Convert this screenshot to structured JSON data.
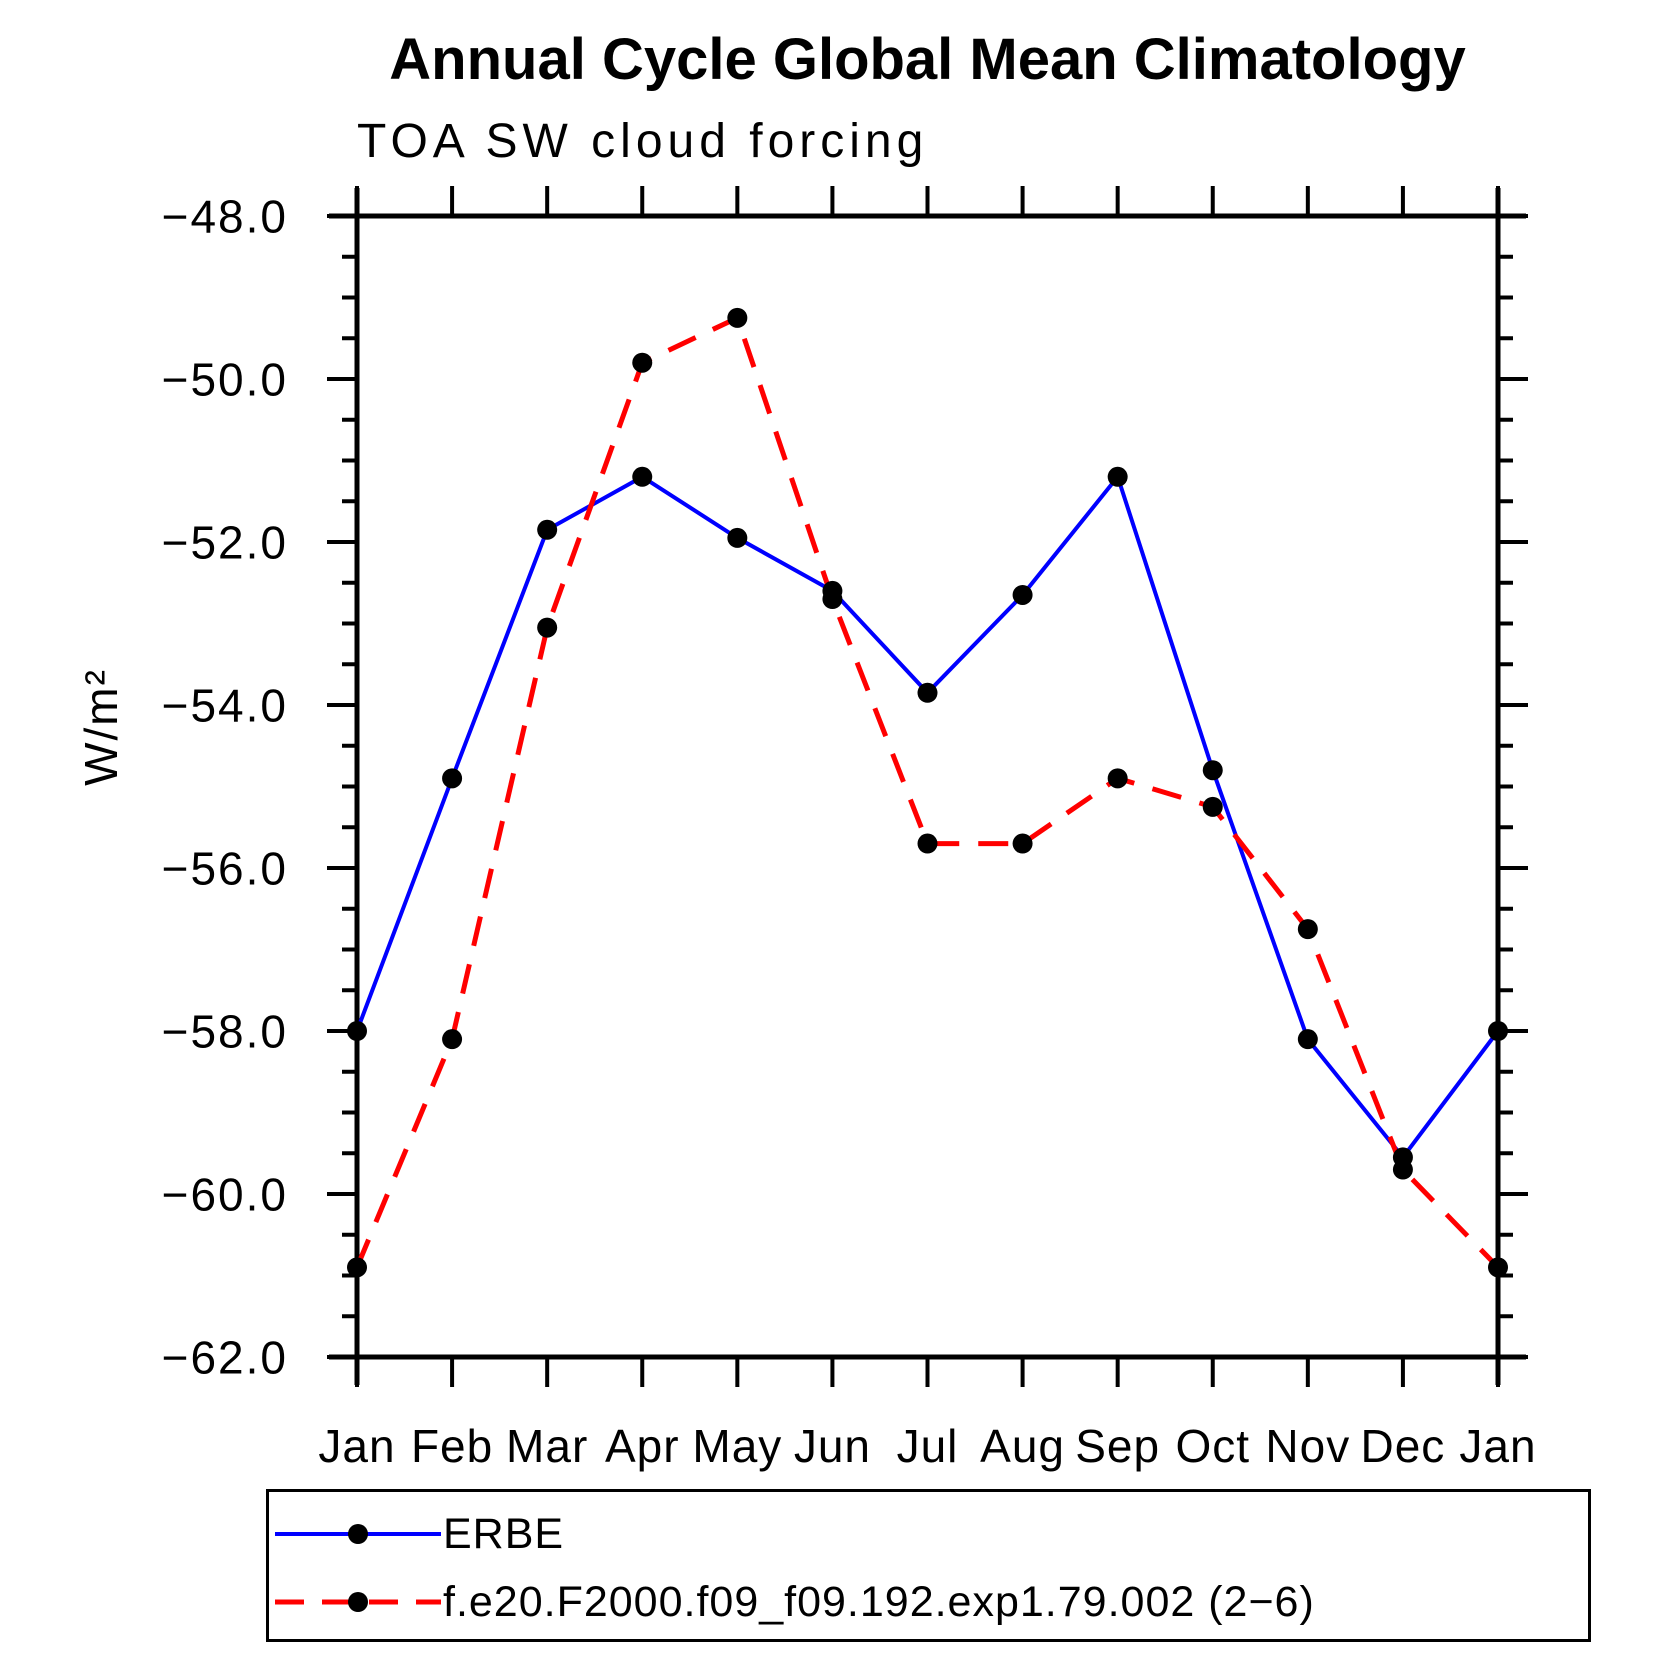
{
  "title": "Annual Cycle Global Mean Climatology",
  "subtitle": "TOA SW cloud forcing",
  "y_axis_label": "W/m²",
  "colors": {
    "erbe_line": "#0000ff",
    "model_line": "#ff0000",
    "marker": "#000000",
    "axis": "#000000",
    "background": "#ffffff"
  },
  "legend": {
    "entries": [
      {
        "label": "ERBE",
        "line_style": "solid",
        "color": "#0000ff"
      },
      {
        "label": "f.e20.F2000.f09_f09.192.exp1.79.002 (2−6)",
        "line_style": "dashed",
        "color": "#ff0000"
      }
    ]
  },
  "chart_data": {
    "type": "line",
    "title": "Annual Cycle Global Mean Climatology",
    "subtitle": "TOA SW cloud forcing",
    "ylabel": "W/m²",
    "categories": [
      "Jan",
      "Feb",
      "Mar",
      "Apr",
      "May",
      "Jun",
      "Jul",
      "Aug",
      "Sep",
      "Oct",
      "Nov",
      "Dec",
      "Jan"
    ],
    "series": [
      {
        "name": "ERBE",
        "color": "#0000ff",
        "style": "solid",
        "marker": "filled-circle",
        "values": [
          -58.0,
          -54.9,
          -51.85,
          -51.2,
          -51.95,
          -52.6,
          -53.85,
          -52.65,
          -51.2,
          -54.8,
          -58.1,
          -59.55,
          -58.0
        ]
      },
      {
        "name": "f.e20.F2000.f09_f09.192.exp1.79.002 (2−6)",
        "color": "#ff0000",
        "style": "dashed",
        "marker": "filled-circle",
        "values": [
          -60.9,
          -58.1,
          -53.05,
          -49.8,
          -49.25,
          -52.7,
          -55.7,
          -55.7,
          -54.9,
          -55.25,
          -56.75,
          -59.7,
          -60.9
        ]
      }
    ],
    "ylim": [
      -62.0,
      -48.0
    ],
    "y_major_step": 2.0,
    "y_minor_step": 0.5,
    "y_tick_labels": [
      "−48.0",
      "−50.0",
      "−52.0",
      "−54.0",
      "−56.0",
      "−58.0",
      "−60.0",
      "−62.0"
    ],
    "grid": false,
    "legend_position": "bottom"
  }
}
